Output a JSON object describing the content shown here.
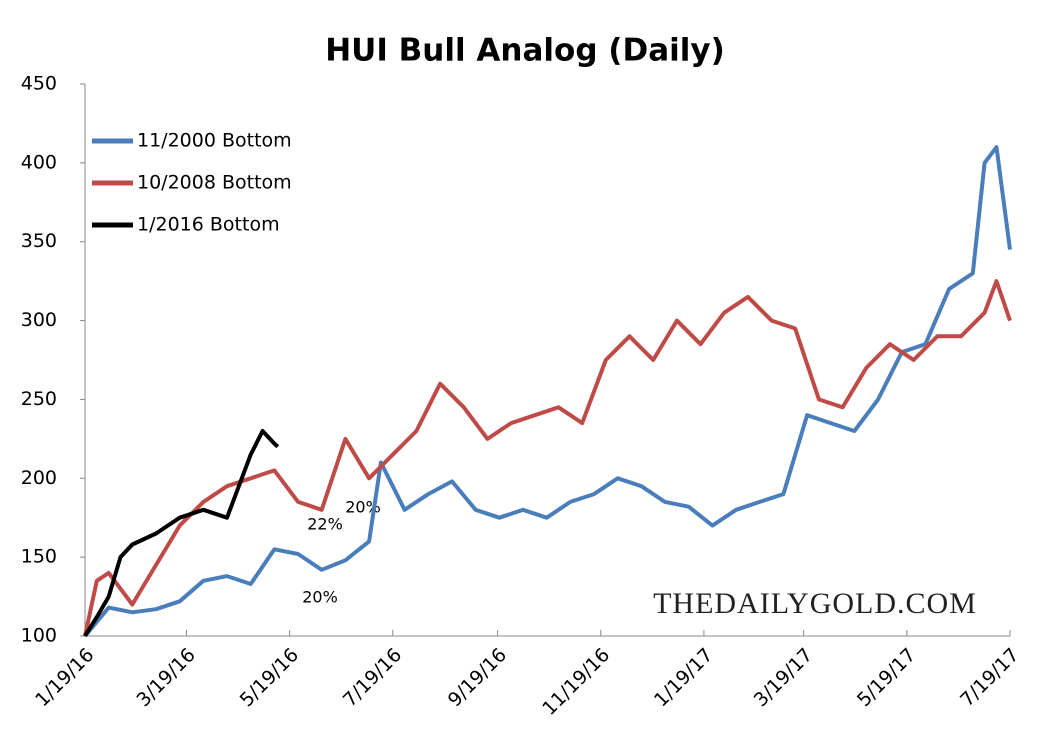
{
  "chart_data": {
    "type": "line",
    "title": "HUI Bull Analog (Daily)",
    "xlim": [
      "1/19/16",
      "7/19/17"
    ],
    "xticks": [
      "1/19/16",
      "3/19/16",
      "5/19/16",
      "7/19/16",
      "9/19/16",
      "11/19/16",
      "1/19/17",
      "3/19/17",
      "5/19/17",
      "7/19/17"
    ],
    "ylim": [
      100,
      450
    ],
    "yticks": [
      100,
      150,
      200,
      250,
      300,
      350,
      400,
      450
    ],
    "legend": "top-left",
    "annotations": [
      "22%",
      "20%",
      "20%",
      "THEDAILYGOLD.COM"
    ],
    "series": [
      {
        "name": "11/2000 Bottom",
        "color": "#4a7ebb",
        "x": [
          "1/19/16",
          "2/2/16",
          "2/16/16",
          "3/1/16",
          "3/15/16",
          "3/29/16",
          "4/12/16",
          "4/26/16",
          "5/10/16",
          "5/24/16",
          "6/7/16",
          "6/21/16",
          "7/5/16",
          "7/12/16",
          "7/26/16",
          "8/9/16",
          "8/23/16",
          "9/6/16",
          "9/20/16",
          "10/4/16",
          "10/18/16",
          "11/1/16",
          "11/15/16",
          "11/29/16",
          "12/13/16",
          "12/27/16",
          "1/10/17",
          "1/24/17",
          "2/7/17",
          "2/21/17",
          "3/7/17",
          "3/21/17",
          "4/4/17",
          "4/18/17",
          "5/2/17",
          "5/16/17",
          "5/30/17",
          "6/13/17",
          "6/27/17",
          "7/4/17",
          "7/11/17",
          "7/19/17"
        ],
        "values": [
          100,
          118,
          115,
          117,
          122,
          135,
          138,
          133,
          155,
          152,
          142,
          148,
          160,
          210,
          180,
          190,
          198,
          180,
          175,
          180,
          175,
          185,
          190,
          200,
          195,
          185,
          182,
          170,
          180,
          185,
          190,
          240,
          235,
          230,
          250,
          280,
          285,
          320,
          330,
          400,
          410,
          345
        ]
      },
      {
        "name": "10/2008 Bottom",
        "color": "#be4b48",
        "x": [
          "1/19/16",
          "1/26/16",
          "2/2/16",
          "2/16/16",
          "3/1/16",
          "3/15/16",
          "3/29/16",
          "4/12/16",
          "4/26/16",
          "5/10/16",
          "5/24/16",
          "6/7/16",
          "6/21/16",
          "7/5/16",
          "7/19/16",
          "8/2/16",
          "8/16/16",
          "8/30/16",
          "9/13/16",
          "9/27/16",
          "10/11/16",
          "10/25/16",
          "11/8/16",
          "11/22/16",
          "12/6/16",
          "12/20/16",
          "1/3/17",
          "1/17/17",
          "1/31/17",
          "2/14/17",
          "2/28/17",
          "3/14/17",
          "3/28/17",
          "4/11/17",
          "4/25/17",
          "5/9/17",
          "5/23/17",
          "6/6/17",
          "6/20/17",
          "7/4/17",
          "7/11/17",
          "7/19/17"
        ],
        "values": [
          100,
          135,
          140,
          120,
          145,
          170,
          185,
          195,
          200,
          205,
          185,
          180,
          225,
          200,
          215,
          230,
          260,
          245,
          225,
          235,
          240,
          245,
          235,
          275,
          290,
          275,
          300,
          285,
          305,
          315,
          300,
          295,
          250,
          245,
          270,
          285,
          275,
          290,
          290,
          305,
          325,
          300
        ]
      },
      {
        "name": "1/2016 Bottom",
        "color": "#000000",
        "x": [
          "1/19/16",
          "1/26/16",
          "2/2/16",
          "2/9/16",
          "2/16/16",
          "3/1/16",
          "3/15/16",
          "3/29/16",
          "4/12/16",
          "4/26/16",
          "5/3/16",
          "5/10/16",
          "5/12/16"
        ],
        "values": [
          100,
          112,
          125,
          150,
          158,
          165,
          175,
          180,
          175,
          215,
          230,
          222,
          220
        ]
      }
    ]
  }
}
